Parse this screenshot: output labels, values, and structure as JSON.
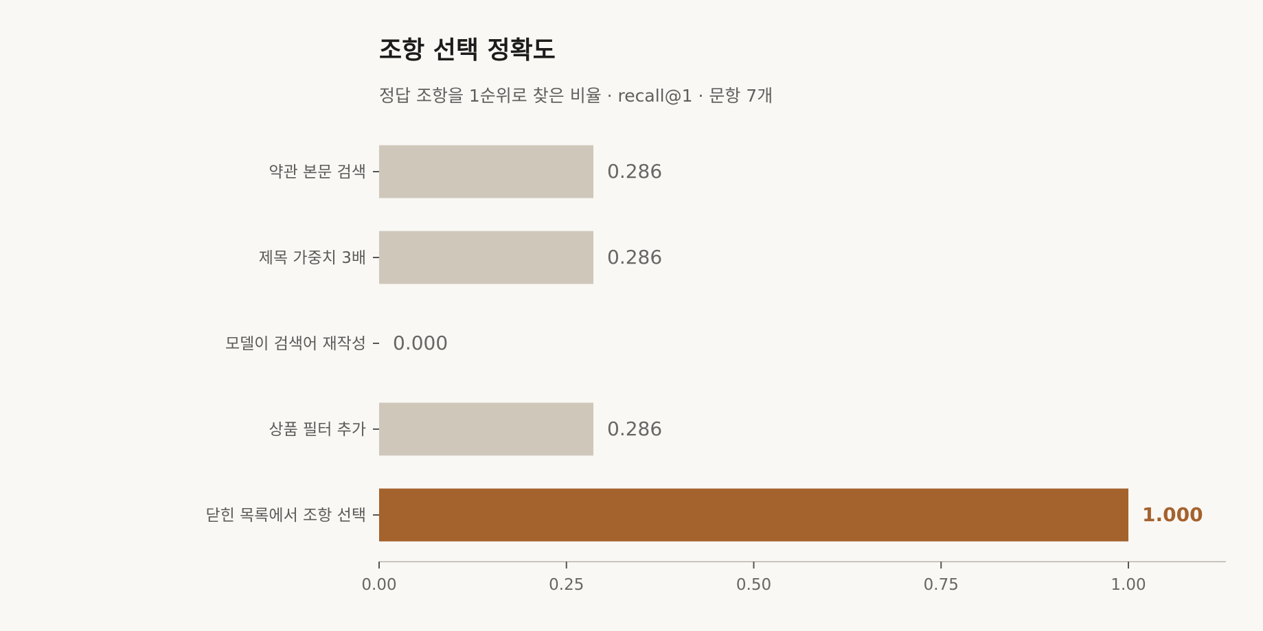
{
  "chart_data": {
    "type": "bar",
    "orientation": "horizontal",
    "title": "조항 선택 정확도",
    "subtitle": "정답 조항을 1순위로 찾은 비율 · recall@1 · 문항 7개",
    "categories": [
      "약관 본문 검색",
      "제목 가중치 3배",
      "모델이 검색어 재작성",
      "상품 필터 추가",
      "닫힌 목록에서 조항 선택"
    ],
    "values": [
      0.286,
      0.286,
      0.0,
      0.286,
      1.0
    ],
    "value_labels": [
      "0.286",
      "0.286",
      "0.000",
      "0.286",
      "1.000"
    ],
    "highlight_index": 4,
    "xlim": [
      0,
      1.13
    ],
    "xticks": [
      0,
      0.25,
      0.5,
      0.75,
      1.0
    ],
    "xtick_labels": [
      "0.00",
      "0.25",
      "0.50",
      "0.75",
      "1.00"
    ],
    "xlabel": "",
    "ylabel": "",
    "grid": false,
    "legend": "none",
    "colors": {
      "bar": "#cfc7ba",
      "highlight": "#a4622d",
      "axis": "#c8c4bc",
      "background": "#faf8f4"
    }
  }
}
